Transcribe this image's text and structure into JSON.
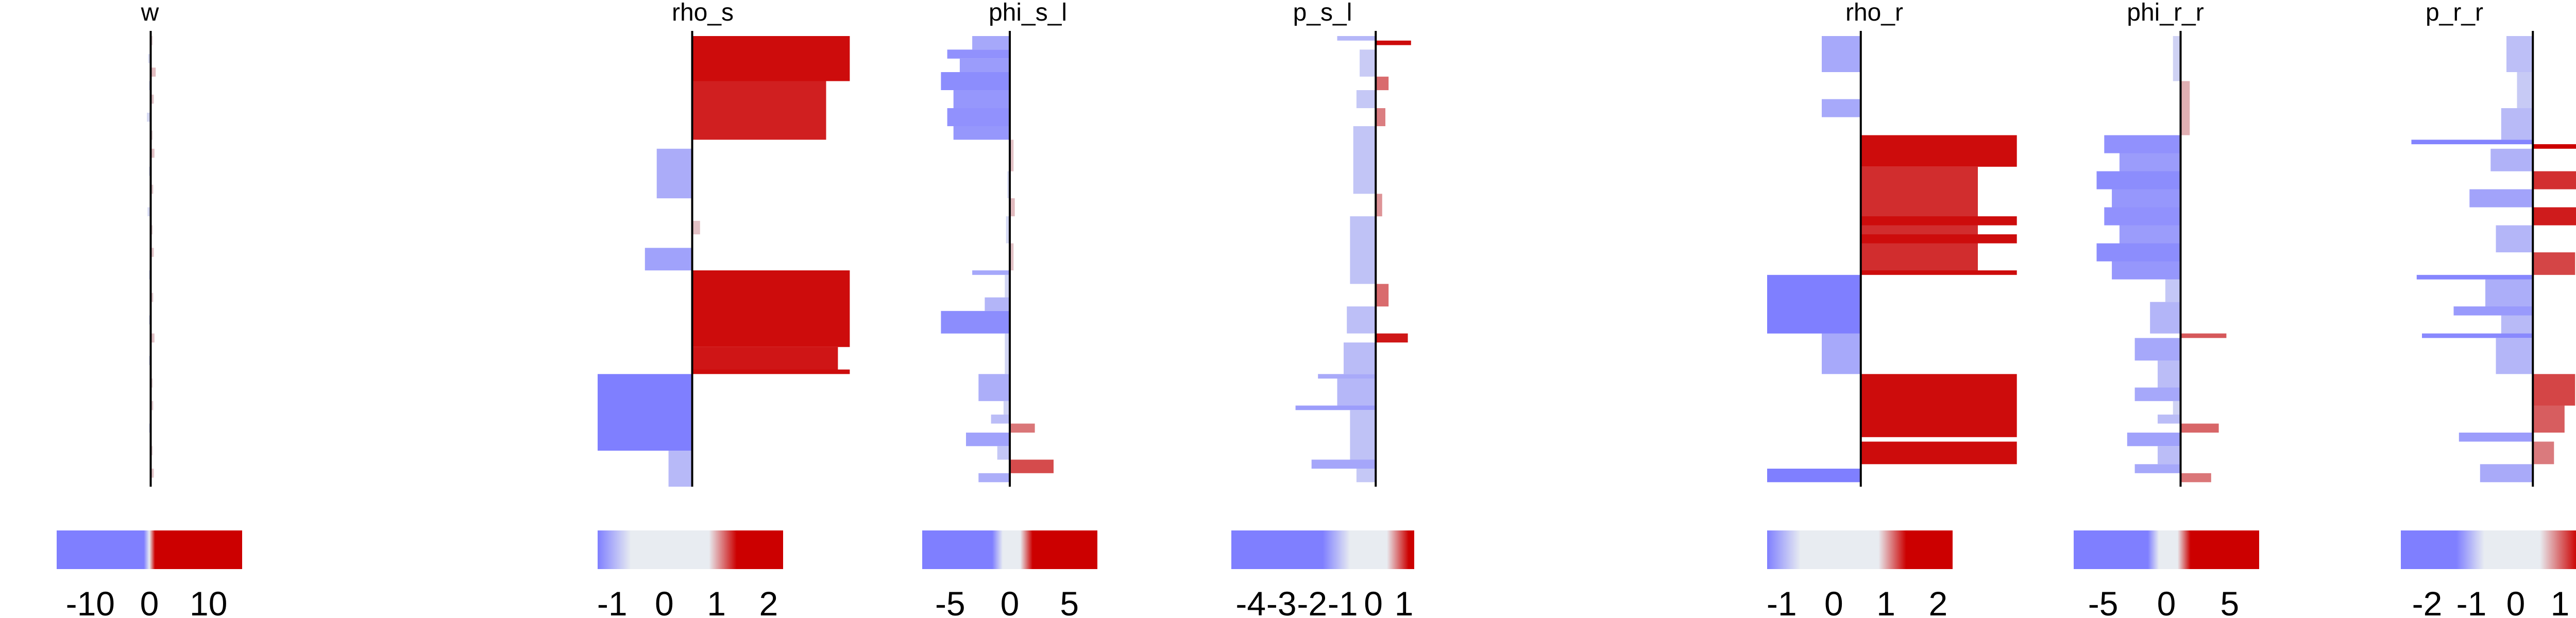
{
  "colors": {
    "negative": "#7f7fff",
    "neutral": "#e8ecf1",
    "positive": "#cc0000",
    "axis": "#000000"
  },
  "chart_data": [
    {
      "type": "bar",
      "orientation": "horizontal",
      "title": "w",
      "xlim": [
        -15,
        15
      ],
      "segments": [
        {
          "from": 0.0,
          "to": 0.02,
          "value": 0.3
        },
        {
          "from": 0.04,
          "to": 0.06,
          "value": -0.4
        },
        {
          "from": 0.07,
          "to": 0.09,
          "value": 0.8
        },
        {
          "from": 0.1,
          "to": 0.12,
          "value": -0.3
        },
        {
          "from": 0.13,
          "to": 0.15,
          "value": 0.5
        },
        {
          "from": 0.17,
          "to": 0.19,
          "value": -0.6
        },
        {
          "from": 0.21,
          "to": 0.23,
          "value": 0.3
        },
        {
          "from": 0.25,
          "to": 0.27,
          "value": 0.6
        },
        {
          "from": 0.29,
          "to": 0.31,
          "value": -0.3
        },
        {
          "from": 0.33,
          "to": 0.35,
          "value": 0.4
        },
        {
          "from": 0.38,
          "to": 0.4,
          "value": -0.5
        },
        {
          "from": 0.42,
          "to": 0.44,
          "value": 0.3
        },
        {
          "from": 0.47,
          "to": 0.49,
          "value": 0.5
        },
        {
          "from": 0.52,
          "to": 0.54,
          "value": -0.3
        },
        {
          "from": 0.57,
          "to": 0.59,
          "value": 0.4
        },
        {
          "from": 0.62,
          "to": 0.64,
          "value": -0.3
        },
        {
          "from": 0.66,
          "to": 0.68,
          "value": 0.6
        },
        {
          "from": 0.71,
          "to": 0.73,
          "value": -0.3
        },
        {
          "from": 0.76,
          "to": 0.78,
          "value": 0.3
        },
        {
          "from": 0.81,
          "to": 0.83,
          "value": 0.4
        },
        {
          "from": 0.86,
          "to": 0.88,
          "value": -0.3
        },
        {
          "from": 0.91,
          "to": 0.93,
          "value": 0.3
        },
        {
          "from": 0.96,
          "to": 0.98,
          "value": 0.5
        }
      ],
      "colorbar": {
        "range": [
          -15,
          15
        ],
        "ticks": [
          -10,
          0,
          10
        ],
        "tick_labels": [
          "-10",
          "0",
          "10"
        ],
        "stops": [
          [
            0,
            "#7f7fff"
          ],
          [
            0.47,
            "#7f7fff"
          ],
          [
            0.5,
            "#e8ecf1"
          ],
          [
            0.53,
            "#cc0000"
          ],
          [
            1,
            "#cc0000"
          ]
        ]
      }
    },
    {
      "type": "bar",
      "orientation": "horizontal",
      "title": "rho_s",
      "xlim": [
        -1.2,
        2.2
      ],
      "segments": [
        {
          "from": 0.0,
          "to": 0.1,
          "value": 2.0
        },
        {
          "from": 0.1,
          "to": 0.23,
          "value": 1.7
        },
        {
          "from": 0.23,
          "to": 0.25,
          "value": 0.0
        },
        {
          "from": 0.25,
          "to": 0.36,
          "value": -0.45
        },
        {
          "from": 0.36,
          "to": 0.41,
          "value": 0.0
        },
        {
          "from": 0.41,
          "to": 0.44,
          "value": 0.1
        },
        {
          "from": 0.44,
          "to": 0.47,
          "value": 0.0
        },
        {
          "from": 0.47,
          "to": 0.52,
          "value": -0.6
        },
        {
          "from": 0.52,
          "to": 0.69,
          "value": 2.0
        },
        {
          "from": 0.69,
          "to": 0.74,
          "value": 1.85
        },
        {
          "from": 0.74,
          "to": 0.75,
          "value": 2.0
        },
        {
          "from": 0.75,
          "to": 0.92,
          "value": -1.2
        },
        {
          "from": 0.92,
          "to": 1.0,
          "value": -0.3
        }
      ],
      "colorbar": {
        "range": [
          -1.2,
          2.2
        ],
        "ticks": [
          -1,
          0,
          1,
          2
        ],
        "tick_labels": [
          "-1",
          "0",
          "1",
          "2"
        ],
        "stops": [
          [
            0,
            "#7f7fff"
          ],
          [
            0.18,
            "#e8ecf1"
          ],
          [
            0.6,
            "#e8ecf1"
          ],
          [
            0.75,
            "#cc0000"
          ],
          [
            1,
            "#cc0000"
          ]
        ]
      }
    },
    {
      "type": "bar",
      "orientation": "horizontal",
      "title": "phi_s_l",
      "xlim": [
        -7,
        7
      ],
      "segments": [
        {
          "from": 0.0,
          "to": 0.03,
          "value": -3.0
        },
        {
          "from": 0.03,
          "to": 0.05,
          "value": -5.0
        },
        {
          "from": 0.05,
          "to": 0.08,
          "value": -4.0
        },
        {
          "from": 0.08,
          "to": 0.12,
          "value": -5.5
        },
        {
          "from": 0.12,
          "to": 0.16,
          "value": -4.5
        },
        {
          "from": 0.16,
          "to": 0.2,
          "value": -5.0
        },
        {
          "from": 0.2,
          "to": 0.23,
          "value": -4.5
        },
        {
          "from": 0.23,
          "to": 0.3,
          "value": 0.3
        },
        {
          "from": 0.3,
          "to": 0.36,
          "value": -0.2
        },
        {
          "from": 0.36,
          "to": 0.4,
          "value": 0.4
        },
        {
          "from": 0.4,
          "to": 0.46,
          "value": -0.3
        },
        {
          "from": 0.46,
          "to": 0.52,
          "value": 0.3
        },
        {
          "from": 0.52,
          "to": 0.53,
          "value": -3.0
        },
        {
          "from": 0.53,
          "to": 0.58,
          "value": -0.4
        },
        {
          "from": 0.58,
          "to": 0.61,
          "value": -2.0
        },
        {
          "from": 0.61,
          "to": 0.66,
          "value": -5.5
        },
        {
          "from": 0.66,
          "to": 0.75,
          "value": -0.4
        },
        {
          "from": 0.75,
          "to": 0.81,
          "value": -2.5
        },
        {
          "from": 0.81,
          "to": 0.84,
          "value": -0.5
        },
        {
          "from": 0.84,
          "to": 0.86,
          "value": -1.5
        },
        {
          "from": 0.86,
          "to": 0.88,
          "value": 2.0
        },
        {
          "from": 0.88,
          "to": 0.91,
          "value": -3.5
        },
        {
          "from": 0.91,
          "to": 0.94,
          "value": -1.0
        },
        {
          "from": 0.94,
          "to": 0.97,
          "value": 3.5
        },
        {
          "from": 0.97,
          "to": 0.99,
          "value": -2.5
        }
      ],
      "colorbar": {
        "range": [
          -7,
          7
        ],
        "ticks": [
          -5,
          0,
          5
        ],
        "tick_labels": [
          "-5",
          "0",
          "5"
        ],
        "stops": [
          [
            0,
            "#7f7fff"
          ],
          [
            0.4,
            "#7f7fff"
          ],
          [
            0.46,
            "#e8ecf1"
          ],
          [
            0.56,
            "#e8ecf1"
          ],
          [
            0.63,
            "#cc0000"
          ],
          [
            1,
            "#cc0000"
          ]
        ]
      }
    },
    {
      "type": "bar",
      "orientation": "horizontal",
      "title": "p_s_l",
      "xlim": [
        -4.5,
        1.2
      ],
      "segments": [
        {
          "from": 0.0,
          "to": 0.01,
          "value": -1.2
        },
        {
          "from": 0.01,
          "to": 0.02,
          "value": 1.1
        },
        {
          "from": 0.03,
          "to": 0.09,
          "value": -0.5
        },
        {
          "from": 0.09,
          "to": 0.12,
          "value": 0.4
        },
        {
          "from": 0.12,
          "to": 0.16,
          "value": -0.6
        },
        {
          "from": 0.16,
          "to": 0.2,
          "value": 0.3
        },
        {
          "from": 0.2,
          "to": 0.35,
          "value": -0.7
        },
        {
          "from": 0.35,
          "to": 0.4,
          "value": 0.2
        },
        {
          "from": 0.4,
          "to": 0.55,
          "value": -0.8
        },
        {
          "from": 0.55,
          "to": 0.6,
          "value": 0.4
        },
        {
          "from": 0.6,
          "to": 0.66,
          "value": -0.9
        },
        {
          "from": 0.66,
          "to": 0.68,
          "value": 1.0
        },
        {
          "from": 0.68,
          "to": 0.75,
          "value": -1.0
        },
        {
          "from": 0.75,
          "to": 0.76,
          "value": -1.8
        },
        {
          "from": 0.76,
          "to": 0.82,
          "value": -1.2
        },
        {
          "from": 0.82,
          "to": 0.83,
          "value": -2.5
        },
        {
          "from": 0.83,
          "to": 0.94,
          "value": -0.8
        },
        {
          "from": 0.94,
          "to": 0.96,
          "value": -2.0
        },
        {
          "from": 0.96,
          "to": 0.99,
          "value": -0.6
        }
      ],
      "colorbar": {
        "range": [
          -4.5,
          1.2
        ],
        "ticks": [
          -4,
          -3,
          -2,
          -1,
          0,
          1
        ],
        "tick_labels": [
          "-4",
          "-3",
          "-2",
          "-1",
          "0",
          "1"
        ],
        "stops": [
          [
            0,
            "#7f7fff"
          ],
          [
            0.5,
            "#7f7fff"
          ],
          [
            0.65,
            "#e8ecf1"
          ],
          [
            0.85,
            "#e8ecf1"
          ],
          [
            0.97,
            "#cc0000"
          ],
          [
            1,
            "#cc0000"
          ]
        ]
      }
    },
    {
      "type": "bar",
      "orientation": "horizontal",
      "title": "rho_r",
      "xlim": [
        -1.2,
        2.2
      ],
      "segments": [
        {
          "from": 0.0,
          "to": 0.08,
          "value": -0.5
        },
        {
          "from": 0.08,
          "to": 0.14,
          "value": 0.0
        },
        {
          "from": 0.14,
          "to": 0.18,
          "value": -0.5
        },
        {
          "from": 0.18,
          "to": 0.22,
          "value": 0.0
        },
        {
          "from": 0.22,
          "to": 0.29,
          "value": 2.0
        },
        {
          "from": 0.29,
          "to": 0.4,
          "value": 1.5
        },
        {
          "from": 0.4,
          "to": 0.42,
          "value": 2.0
        },
        {
          "from": 0.42,
          "to": 0.44,
          "value": 1.5
        },
        {
          "from": 0.44,
          "to": 0.46,
          "value": 2.0
        },
        {
          "from": 0.46,
          "to": 0.52,
          "value": 1.5
        },
        {
          "from": 0.52,
          "to": 0.53,
          "value": 2.0
        },
        {
          "from": 0.53,
          "to": 0.66,
          "value": -1.2
        },
        {
          "from": 0.66,
          "to": 0.75,
          "value": -0.5
        },
        {
          "from": 0.75,
          "to": 0.89,
          "value": 2.0
        },
        {
          "from": 0.89,
          "to": 0.9,
          "value": 0.0
        },
        {
          "from": 0.9,
          "to": 0.95,
          "value": 2.0
        },
        {
          "from": 0.96,
          "to": 0.99,
          "value": -1.2
        }
      ],
      "colorbar": {
        "range": [
          -1.2,
          2.2
        ],
        "ticks": [
          -1,
          0,
          1,
          2
        ],
        "tick_labels": [
          "-1",
          "0",
          "1",
          "2"
        ],
        "stops": [
          [
            0,
            "#7f7fff"
          ],
          [
            0.18,
            "#e8ecf1"
          ],
          [
            0.6,
            "#e8ecf1"
          ],
          [
            0.75,
            "#cc0000"
          ],
          [
            1,
            "#cc0000"
          ]
        ]
      }
    },
    {
      "type": "bar",
      "orientation": "horizontal",
      "title": "phi_r_r",
      "xlim": [
        -7,
        7
      ],
      "segments": [
        {
          "from": 0.0,
          "to": 0.1,
          "value": -0.5
        },
        {
          "from": 0.1,
          "to": 0.22,
          "value": 0.6
        },
        {
          "from": 0.22,
          "to": 0.26,
          "value": -5.0
        },
        {
          "from": 0.26,
          "to": 0.3,
          "value": -4.0
        },
        {
          "from": 0.3,
          "to": 0.34,
          "value": -5.5
        },
        {
          "from": 0.34,
          "to": 0.38,
          "value": -4.5
        },
        {
          "from": 0.38,
          "to": 0.42,
          "value": -5.0
        },
        {
          "from": 0.42,
          "to": 0.46,
          "value": -4.0
        },
        {
          "from": 0.46,
          "to": 0.5,
          "value": -5.5
        },
        {
          "from": 0.5,
          "to": 0.54,
          "value": -4.5
        },
        {
          "from": 0.54,
          "to": 0.59,
          "value": -1.0
        },
        {
          "from": 0.59,
          "to": 0.66,
          "value": -2.0
        },
        {
          "from": 0.66,
          "to": 0.67,
          "value": 3.0
        },
        {
          "from": 0.67,
          "to": 0.72,
          "value": -3.0
        },
        {
          "from": 0.72,
          "to": 0.78,
          "value": -1.5
        },
        {
          "from": 0.78,
          "to": 0.81,
          "value": -3.0
        },
        {
          "from": 0.81,
          "to": 0.84,
          "value": -0.5
        },
        {
          "from": 0.84,
          "to": 0.86,
          "value": -1.5
        },
        {
          "from": 0.86,
          "to": 0.88,
          "value": 2.5
        },
        {
          "from": 0.88,
          "to": 0.91,
          "value": -3.5
        },
        {
          "from": 0.91,
          "to": 0.95,
          "value": -1.5
        },
        {
          "from": 0.95,
          "to": 0.97,
          "value": -3.0
        },
        {
          "from": 0.97,
          "to": 0.99,
          "value": 2.0
        }
      ],
      "colorbar": {
        "range": [
          -7,
          7
        ],
        "ticks": [
          -5,
          0,
          5
        ],
        "tick_labels": [
          "-5",
          "0",
          "5"
        ],
        "stops": [
          [
            0,
            "#7f7fff"
          ],
          [
            0.4,
            "#7f7fff"
          ],
          [
            0.46,
            "#e8ecf1"
          ],
          [
            0.56,
            "#e8ecf1"
          ],
          [
            0.63,
            "#cc0000"
          ],
          [
            1,
            "#cc0000"
          ]
        ]
      }
    },
    {
      "type": "bar",
      "orientation": "horizontal",
      "title": "p_r_r",
      "xlim": [
        -2.5,
        1.5
      ],
      "segments": [
        {
          "from": 0.0,
          "to": 0.08,
          "value": -0.5
        },
        {
          "from": 0.08,
          "to": 0.16,
          "value": -0.3
        },
        {
          "from": 0.16,
          "to": 0.23,
          "value": -0.6
        },
        {
          "from": 0.23,
          "to": 0.24,
          "value": -2.3
        },
        {
          "from": 0.24,
          "to": 0.25,
          "value": 1.5
        },
        {
          "from": 0.25,
          "to": 0.3,
          "value": -0.8
        },
        {
          "from": 0.3,
          "to": 0.34,
          "value": 1.0
        },
        {
          "from": 0.34,
          "to": 0.38,
          "value": -1.2
        },
        {
          "from": 0.38,
          "to": 0.42,
          "value": 1.2
        },
        {
          "from": 0.42,
          "to": 0.48,
          "value": -0.7
        },
        {
          "from": 0.48,
          "to": 0.53,
          "value": 0.8
        },
        {
          "from": 0.53,
          "to": 0.54,
          "value": -2.2
        },
        {
          "from": 0.54,
          "to": 0.6,
          "value": -0.9
        },
        {
          "from": 0.6,
          "to": 0.62,
          "value": -1.5
        },
        {
          "from": 0.62,
          "to": 0.66,
          "value": -0.6
        },
        {
          "from": 0.66,
          "to": 0.67,
          "value": -2.1
        },
        {
          "from": 0.67,
          "to": 0.75,
          "value": -0.7
        },
        {
          "from": 0.75,
          "to": 0.82,
          "value": 0.8
        },
        {
          "from": 0.82,
          "to": 0.88,
          "value": 0.6
        },
        {
          "from": 0.88,
          "to": 0.9,
          "value": -1.4
        },
        {
          "from": 0.9,
          "to": 0.95,
          "value": 0.4
        },
        {
          "from": 0.95,
          "to": 0.99,
          "value": -1.0
        }
      ],
      "colorbar": {
        "range": [
          -2.5,
          1.5
        ],
        "ticks": [
          -2,
          -1,
          0,
          1
        ],
        "tick_labels": [
          "-2",
          "-1",
          "0",
          "1"
        ],
        "stops": [
          [
            0,
            "#7f7fff"
          ],
          [
            0.3,
            "#7f7fff"
          ],
          [
            0.45,
            "#e8ecf1"
          ],
          [
            0.75,
            "#e8ecf1"
          ],
          [
            0.95,
            "#cc0000"
          ],
          [
            1,
            "#cc0000"
          ]
        ]
      }
    }
  ]
}
